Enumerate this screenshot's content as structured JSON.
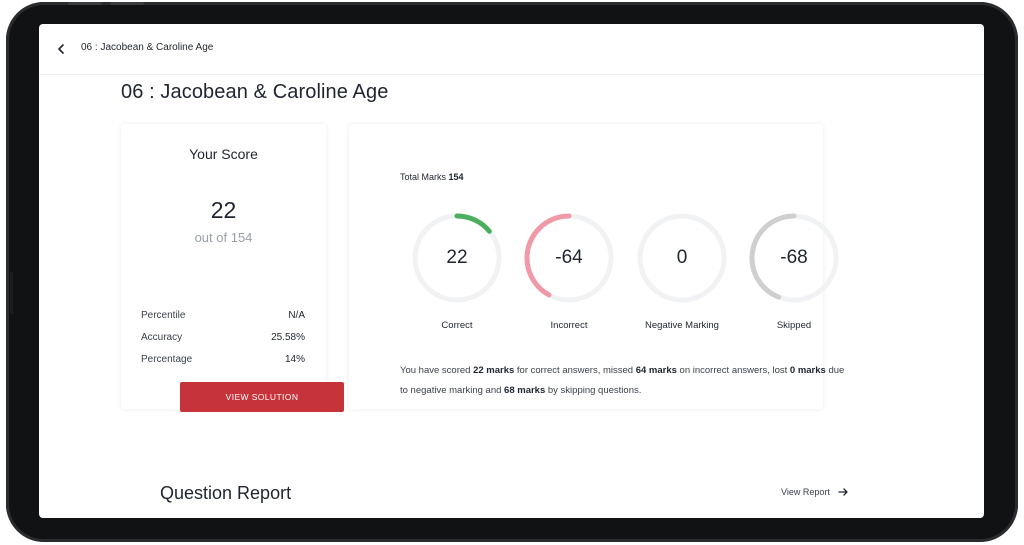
{
  "header": {
    "title": "06 : Jacobean & Caroline Age"
  },
  "page": {
    "title": "06 : Jacobean & Caroline Age"
  },
  "score_card": {
    "title": "Your Score",
    "score": "22",
    "out_of": "out of 154",
    "stats": [
      {
        "label": "Percentile",
        "value": "N/A"
      },
      {
        "label": "Accuracy",
        "value": "25.58%"
      },
      {
        "label": "Percentage",
        "value": "14%"
      }
    ],
    "button_label": "VIEW SOLUTION"
  },
  "marks_card": {
    "total_label": "Total Marks",
    "total_value": "154",
    "rings": [
      {
        "value": "22",
        "label": "Correct",
        "fraction": 0.14,
        "direction": "cw",
        "color": "#4caf60"
      },
      {
        "value": "-64",
        "label": "Incorrect",
        "fraction": 0.42,
        "direction": "ccw",
        "color": "#ef9aa6"
      },
      {
        "value": "0",
        "label": "Negative Marking",
        "fraction": 0,
        "direction": "cw",
        "color": "#c9c9c9"
      },
      {
        "value": "-68",
        "label": "Skipped",
        "fraction": 0.44,
        "direction": "ccw",
        "color": "#cfcfcf"
      }
    ],
    "summary": {
      "p1": "You have scored ",
      "b1": "22 marks",
      "p2": " for correct answers, missed ",
      "b2": "64 marks",
      "p3": " on incorrect answers, lost ",
      "b3": "0 marks",
      "p4": " due to negative marking and ",
      "b4": "68 marks",
      "p5": " by skipping questions."
    }
  },
  "question_report": {
    "title": "Question Report",
    "link_label": "View Report"
  },
  "colors": {
    "accent": "#c7333a",
    "track": "#f0f2f4"
  },
  "icons": {
    "back": "chevron-left-icon",
    "arrow": "arrow-right-icon"
  }
}
